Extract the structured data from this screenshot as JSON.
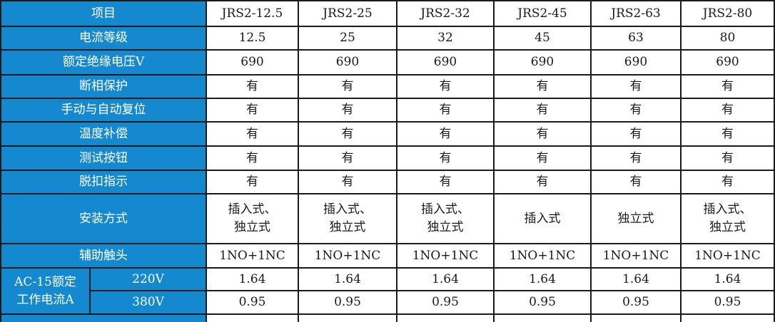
{
  "table": {
    "item_header": "项目",
    "models": [
      "JRS2-12.5",
      "JRS2-25",
      "JRS2-32",
      "JRS2-45",
      "JRS2-63",
      "JRS2-80"
    ],
    "rows": [
      {
        "label": "电流等级",
        "values": [
          "12.5",
          "25",
          "32",
          "45",
          "63",
          "80"
        ]
      },
      {
        "label": "额定绝缘电压V",
        "values": [
          "690",
          "690",
          "690",
          "690",
          "690",
          "690"
        ]
      },
      {
        "label": "断相保护",
        "values": [
          "有",
          "有",
          "有",
          "有",
          "有",
          "有"
        ]
      },
      {
        "label": "手动与自动复位",
        "values": [
          "有",
          "有",
          "有",
          "有",
          "有",
          "有"
        ]
      },
      {
        "label": "温度补偿",
        "values": [
          "有",
          "有",
          "有",
          "有",
          "有",
          "有"
        ]
      },
      {
        "label": "测试按钮",
        "values": [
          "有",
          "有",
          "有",
          "有",
          "有",
          "有"
        ]
      },
      {
        "label": "脱扣指示",
        "values": [
          "有",
          "有",
          "有",
          "有",
          "有",
          "有"
        ]
      },
      {
        "label": "安装方式",
        "values": [
          "插入式、\n独立式",
          "插入式、\n独立式",
          "插入式、\n独立式",
          "插入式",
          "独立式",
          "插入式、\n独立式"
        ]
      },
      {
        "label": "辅助触头",
        "values": [
          "1NO+1NC",
          "1NO+1NC",
          "1NO+1NC",
          "1NO+1NC",
          "1NO+1NC",
          "1NO+1NC"
        ]
      }
    ],
    "ac15_group": {
      "label": "AC-15额定\n工作电流A",
      "sub_rows": [
        {
          "label": "220V",
          "values": [
            "1.64",
            "1.64",
            "1.64",
            "1.64",
            "1.64",
            "1.64"
          ]
        },
        {
          "label": "380V",
          "values": [
            "0.95",
            "0.95",
            "0.95",
            "0.95",
            "0.95",
            "0.95"
          ]
        }
      ]
    },
    "colors": {
      "header_bg": "#1589CF",
      "grid_line": "#1a1a1a",
      "cell_bg": "#ffffff"
    }
  }
}
